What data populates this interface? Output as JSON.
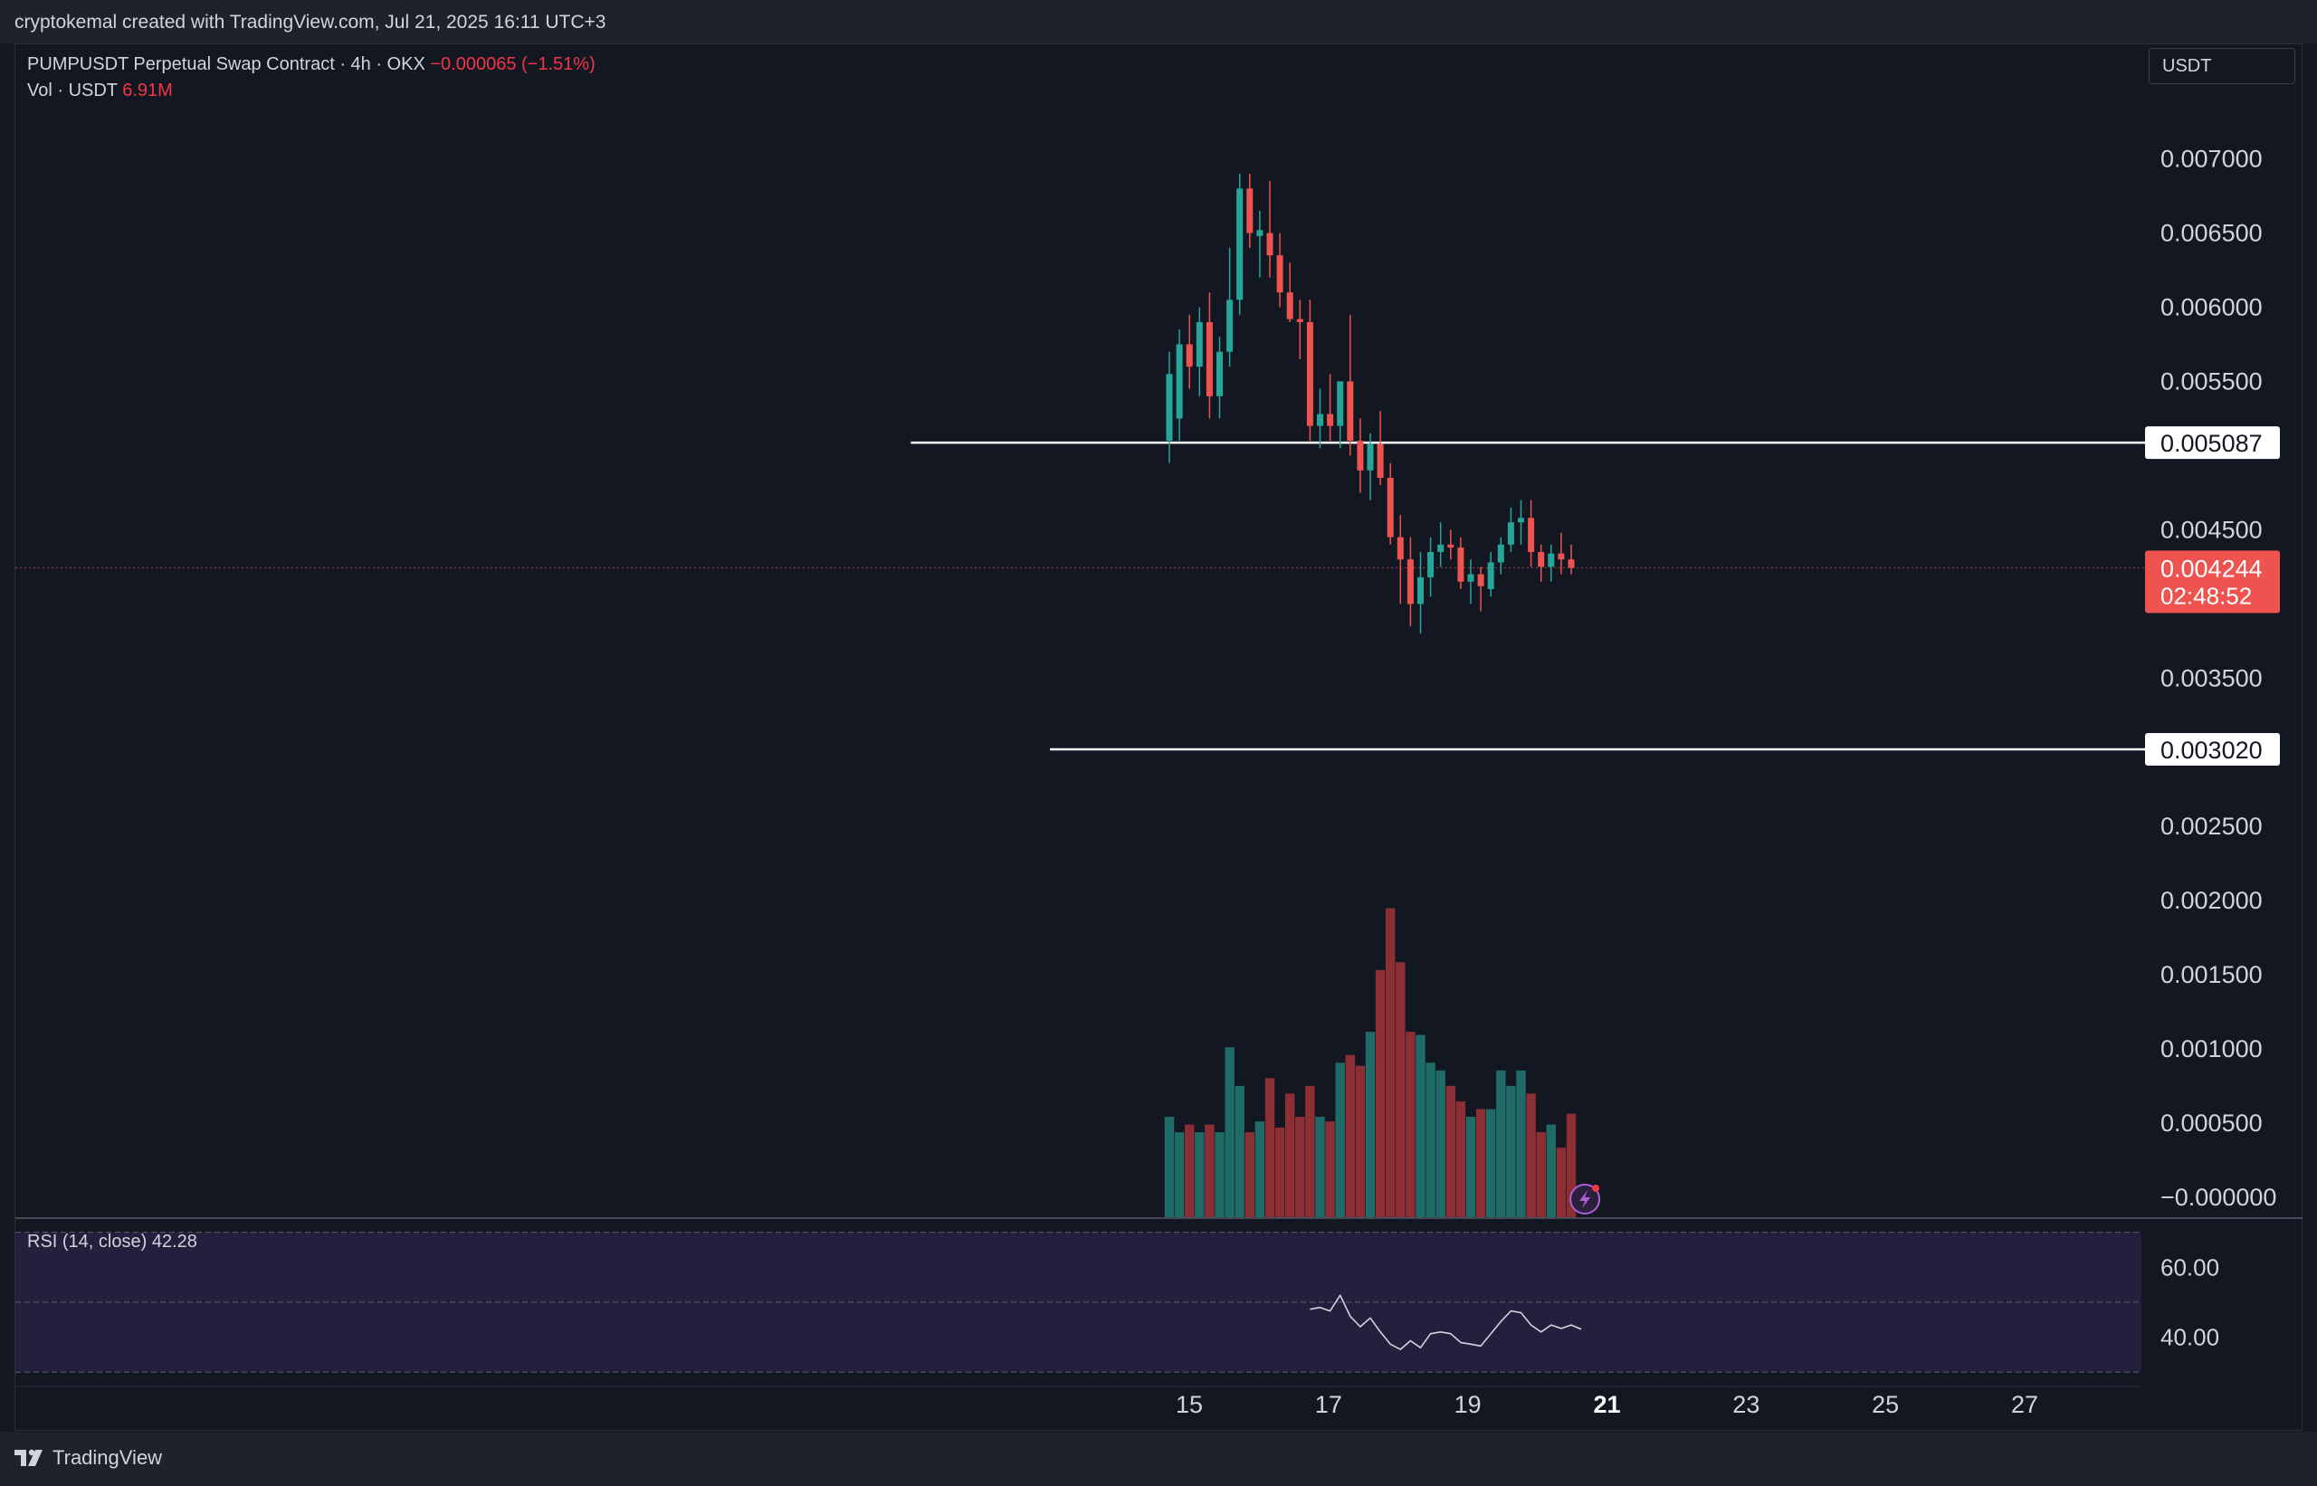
{
  "header": {
    "attribution": "cryptokemal created with TradingView.com, Jul 21, 2025 16:11 UTC+3"
  },
  "legend": {
    "symbol": "PUMPUSDT Perpetual Swap Contract · 4h · OKX",
    "change": "−0.000065 (−1.51%)",
    "volume_label": "Vol · USDT",
    "volume_value": "6.91M",
    "rsi_label": "RSI (14, close)",
    "rsi_value": "42.28"
  },
  "currency_selector": "USDT",
  "footer": {
    "brand": "TradingView"
  },
  "colors": {
    "background": "#131722",
    "up": "#26a69a",
    "down": "#ef5350",
    "volume_up": "#1e6b67",
    "volume_down": "#8c2f34",
    "rsi_band": "#251f3e",
    "rsi_line": "#d1d4dc",
    "level_line": "#ffffff",
    "price_tag": "#ef5350"
  },
  "chart_data": {
    "type": "candlestick",
    "timeframe": "4h",
    "x_ticks": [
      "15",
      "17",
      "19",
      "21",
      "23",
      "25",
      "27"
    ],
    "price_ticks": [
      "0.007000",
      "0.006500",
      "0.006000",
      "0.005500",
      "0.004500",
      "0.003500",
      "0.002500",
      "0.002000",
      "0.001500",
      "0.001000",
      "0.000500",
      "−0.000000"
    ],
    "price_ylim": [
      -0.00014,
      0.0074
    ],
    "horizontal_levels": [
      {
        "price": 0.005087,
        "label": "0.005087",
        "start_date": "2025-07-11"
      },
      {
        "price": 0.00302,
        "label": "0.003020",
        "start_date": "2025-07-13"
      }
    ],
    "last_price": {
      "price": 0.004244,
      "label": "0.004244",
      "countdown": "02:48:52"
    },
    "candles": [
      {
        "o": 0.0051,
        "h": 0.0057,
        "l": 0.00495,
        "c": 0.00555
      },
      {
        "o": 0.00525,
        "h": 0.00585,
        "l": 0.0051,
        "c": 0.00575
      },
      {
        "o": 0.00575,
        "h": 0.00595,
        "l": 0.00545,
        "c": 0.0056
      },
      {
        "o": 0.0056,
        "h": 0.006,
        "l": 0.0054,
        "c": 0.0059
      },
      {
        "o": 0.0059,
        "h": 0.0061,
        "l": 0.00525,
        "c": 0.0054
      },
      {
        "o": 0.0054,
        "h": 0.0058,
        "l": 0.00525,
        "c": 0.0057
      },
      {
        "o": 0.0057,
        "h": 0.0064,
        "l": 0.0056,
        "c": 0.00605
      },
      {
        "o": 0.00605,
        "h": 0.0069,
        "l": 0.00595,
        "c": 0.0068
      },
      {
        "o": 0.0068,
        "h": 0.0069,
        "l": 0.0064,
        "c": 0.0065
      },
      {
        "o": 0.00648,
        "h": 0.00665,
        "l": 0.0062,
        "c": 0.00652
      },
      {
        "o": 0.0065,
        "h": 0.00685,
        "l": 0.0062,
        "c": 0.00635
      },
      {
        "o": 0.00635,
        "h": 0.0065,
        "l": 0.006,
        "c": 0.0061
      },
      {
        "o": 0.0061,
        "h": 0.0063,
        "l": 0.0059,
        "c": 0.00592
      },
      {
        "o": 0.00592,
        "h": 0.00605,
        "l": 0.00565,
        "c": 0.0059
      },
      {
        "o": 0.0059,
        "h": 0.00605,
        "l": 0.0051,
        "c": 0.0052
      },
      {
        "o": 0.0052,
        "h": 0.00545,
        "l": 0.00505,
        "c": 0.00528
      },
      {
        "o": 0.00528,
        "h": 0.00555,
        "l": 0.0051,
        "c": 0.0052
      },
      {
        "o": 0.0052,
        "h": 0.0055,
        "l": 0.00505,
        "c": 0.0055
      },
      {
        "o": 0.0055,
        "h": 0.00595,
        "l": 0.005,
        "c": 0.0051
      },
      {
        "o": 0.0051,
        "h": 0.00525,
        "l": 0.00475,
        "c": 0.0049
      },
      {
        "o": 0.0049,
        "h": 0.00515,
        "l": 0.0047,
        "c": 0.00508
      },
      {
        "o": 0.00508,
        "h": 0.0053,
        "l": 0.0048,
        "c": 0.00485
      },
      {
        "o": 0.00485,
        "h": 0.00495,
        "l": 0.0044,
        "c": 0.00445
      },
      {
        "o": 0.00445,
        "h": 0.0046,
        "l": 0.004,
        "c": 0.0043
      },
      {
        "o": 0.0043,
        "h": 0.00445,
        "l": 0.00385,
        "c": 0.004
      },
      {
        "o": 0.004,
        "h": 0.00435,
        "l": 0.0038,
        "c": 0.00418
      },
      {
        "o": 0.00418,
        "h": 0.00445,
        "l": 0.00405,
        "c": 0.00435
      },
      {
        "o": 0.00435,
        "h": 0.00455,
        "l": 0.00425,
        "c": 0.0044
      },
      {
        "o": 0.0044,
        "h": 0.0045,
        "l": 0.0043,
        "c": 0.00438
      },
      {
        "o": 0.00438,
        "h": 0.00445,
        "l": 0.0041,
        "c": 0.00415
      },
      {
        "o": 0.00415,
        "h": 0.0043,
        "l": 0.004,
        "c": 0.0042
      },
      {
        "o": 0.0042,
        "h": 0.00425,
        "l": 0.00395,
        "c": 0.00412
      },
      {
        "o": 0.0041,
        "h": 0.00435,
        "l": 0.00405,
        "c": 0.00428
      },
      {
        "o": 0.00428,
        "h": 0.00445,
        "l": 0.0042,
        "c": 0.0044
      },
      {
        "o": 0.0044,
        "h": 0.00465,
        "l": 0.00435,
        "c": 0.00455
      },
      {
        "o": 0.00455,
        "h": 0.0047,
        "l": 0.0044,
        "c": 0.00458
      },
      {
        "o": 0.00458,
        "h": 0.0047,
        "l": 0.00425,
        "c": 0.00435
      },
      {
        "o": 0.00435,
        "h": 0.0044,
        "l": 0.00415,
        "c": 0.00425
      },
      {
        "o": 0.00425,
        "h": 0.0044,
        "l": 0.00415,
        "c": 0.00434
      },
      {
        "o": 0.00434,
        "h": 0.00448,
        "l": 0.0042,
        "c": 0.0043
      },
      {
        "o": 0.0043,
        "h": 0.0044,
        "l": 0.0042,
        "c": 0.004244
      }
    ],
    "volume": [
      0.00065,
      0.00055,
      0.0006,
      0.00055,
      0.0006,
      0.00055,
      0.0011,
      0.00085,
      0.00055,
      0.00062,
      0.0009,
      0.00058,
      0.0008,
      0.00065,
      0.00085,
      0.00065,
      0.00062,
      0.001,
      0.00105,
      0.00098,
      0.0012,
      0.0016,
      0.002,
      0.00165,
      0.0012,
      0.00118,
      0.001,
      0.00095,
      0.00085,
      0.00075,
      0.00065,
      0.0007,
      0.0007,
      0.00095,
      0.00085,
      0.00095,
      0.0008,
      0.00055,
      0.0006,
      0.00045,
      0.00067
    ],
    "volume_max": 0.00205,
    "rsi": {
      "ticks": [
        "60.00",
        "40.00"
      ],
      "upper_band": 70,
      "lower_band": 30,
      "ylim": [
        28,
        73
      ],
      "x_start_candle": 14,
      "values": [
        48,
        48.5,
        47.5,
        52,
        46,
        43,
        45.5,
        41.5,
        38,
        36.5,
        39,
        37,
        41,
        41.5,
        41,
        38.5,
        38,
        37.5,
        41,
        44.5,
        47.5,
        47,
        43.5,
        41.5,
        43.5,
        42.5,
        43.5,
        42.3
      ]
    }
  }
}
